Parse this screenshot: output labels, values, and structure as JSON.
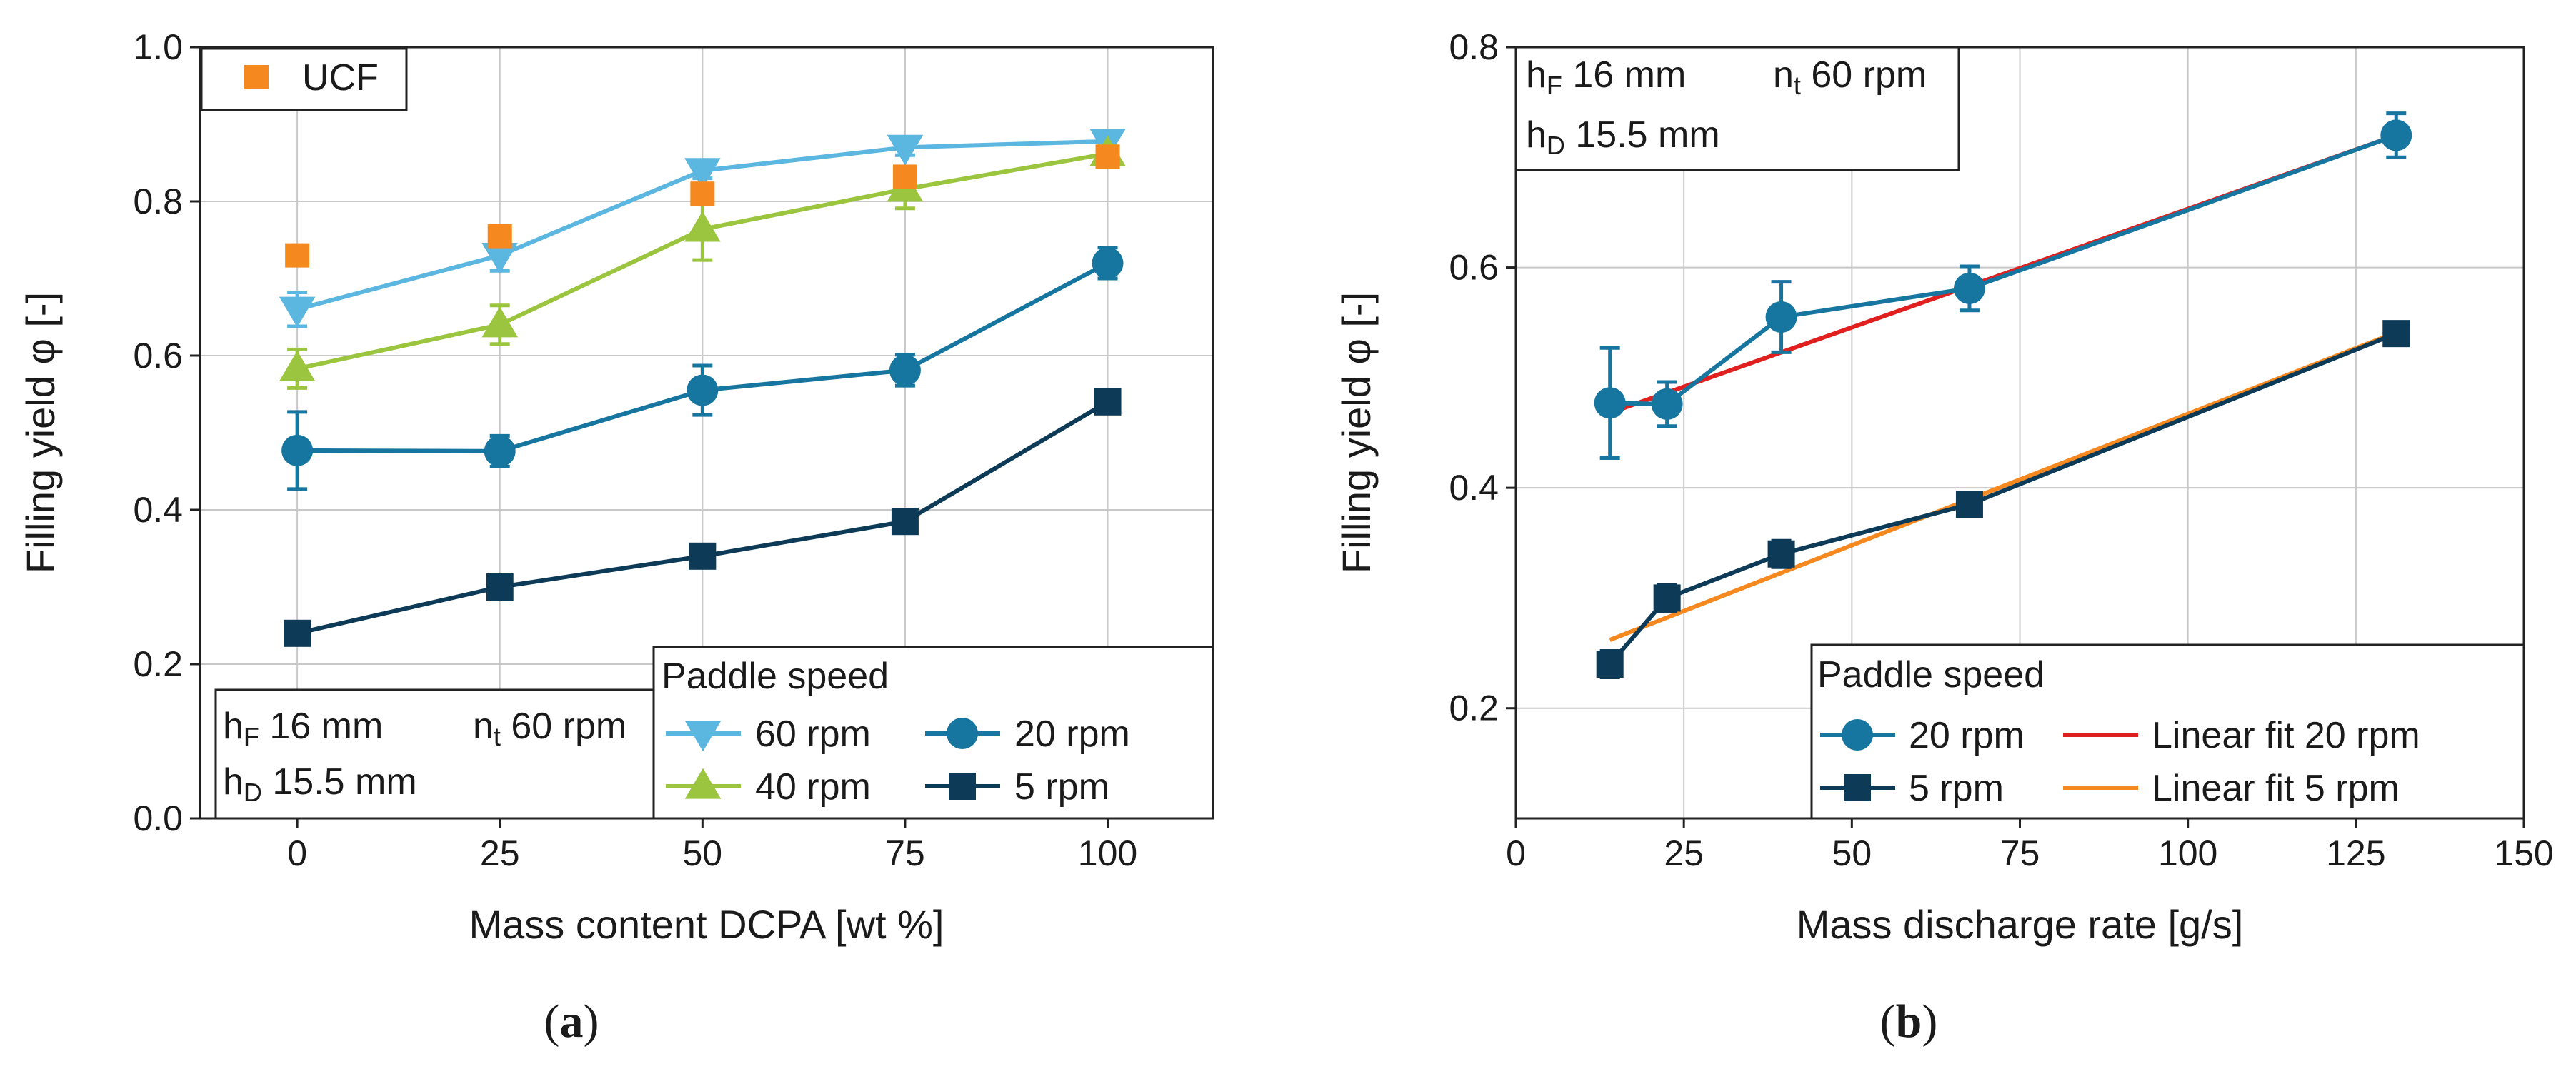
{
  "chart_data": [
    {
      "type": "line",
      "panel": "(a)",
      "panel_letter": "a",
      "xlabel": "Mass content DCPA [wt %]",
      "ylabel": "Filling yield φ [-]",
      "xlim": [
        -12,
        113
      ],
      "ylim": [
        0,
        1.0
      ],
      "xticks": [
        0,
        25,
        50,
        75,
        100
      ],
      "xtick_labels": [
        "0",
        "25",
        "50",
        "75",
        "100"
      ],
      "yticks": [
        0,
        0.2,
        0.4,
        0.6,
        0.8,
        1.0
      ],
      "ytick_labels": [
        "0.0",
        "0.2",
        "0.4",
        "0.6",
        "0.8",
        "1.0"
      ],
      "x": [
        0,
        25,
        50,
        75,
        100
      ],
      "grid": true,
      "legend_title": "Paddle speed",
      "series": [
        {
          "name": "60 rpm",
          "color": "#5bb6e0",
          "marker": "triangle-down",
          "values": [
            0.66,
            0.73,
            0.84,
            0.87,
            0.878
          ],
          "errors": [
            0.022,
            0.02,
            0.01,
            0.01,
            0.008
          ]
        },
        {
          "name": "40 rpm",
          "color": "#9cc53f",
          "marker": "triangle-up",
          "values": [
            0.583,
            0.64,
            0.764,
            0.816,
            0.862
          ],
          "errors": [
            0.025,
            0.025,
            0.04,
            0.025,
            0.01
          ]
        },
        {
          "name": "20 rpm",
          "color": "#17769f",
          "marker": "circle",
          "values": [
            0.477,
            0.476,
            0.555,
            0.581,
            0.72
          ],
          "errors": [
            0.05,
            0.02,
            0.032,
            0.02,
            0.02
          ]
        },
        {
          "name": "5 rpm",
          "color": "#0c3a57",
          "marker": "square",
          "values": [
            0.24,
            0.3,
            0.34,
            0.385,
            0.54
          ],
          "errors": [
            0.012,
            0.012,
            0.012,
            0.008,
            0.008
          ]
        }
      ],
      "extra_series": {
        "name": "UCF",
        "color": "#f5891f",
        "marker": "square",
        "values": [
          0.73,
          0.755,
          0.81,
          0.832,
          0.858
        ]
      },
      "annotation": {
        "hF": "16 mm",
        "nt": "60 rpm",
        "hD": "15.5 mm"
      }
    },
    {
      "type": "line",
      "panel": "(b)",
      "panel_letter": "b",
      "xlabel": "Mass discharge rate [g/s]",
      "ylabel": "Filling yield φ [-]",
      "xlim": [
        0,
        150
      ],
      "ylim": [
        0.1,
        0.8
      ],
      "xticks": [
        0,
        25,
        50,
        75,
        100,
        125,
        150
      ],
      "xtick_labels": [
        "0",
        "25",
        "50",
        "75",
        "100",
        "125",
        "150"
      ],
      "yticks": [
        0.2,
        0.4,
        0.6,
        0.8
      ],
      "ytick_labels": [
        "0.2",
        "0.4",
        "0.6",
        "0.8"
      ],
      "grid": true,
      "legend_title": "Paddle speed",
      "series": [
        {
          "name": "20 rpm",
          "color": "#17769f",
          "marker": "circle",
          "x": [
            14,
            22.5,
            39.5,
            67.5,
            131
          ],
          "values": [
            0.477,
            0.476,
            0.555,
            0.581,
            0.72
          ],
          "errors": [
            0.05,
            0.02,
            0.032,
            0.02,
            0.02
          ]
        },
        {
          "name": "5 rpm",
          "color": "#0c3a57",
          "marker": "square",
          "x": [
            14,
            22.5,
            39.5,
            67.5,
            131
          ],
          "values": [
            0.24,
            0.3,
            0.34,
            0.385,
            0.54
          ],
          "errors": [
            0.012,
            0.012,
            0.012,
            0.008,
            0.008
          ]
        }
      ],
      "fits": [
        {
          "name": "Linear fit 20 rpm",
          "color": "#e0201f",
          "x": [
            14,
            131
          ],
          "values": [
            0.468,
            0.72
          ]
        },
        {
          "name": "Linear fit 5 rpm",
          "color": "#f5891f",
          "x": [
            14,
            131
          ],
          "values": [
            0.262,
            0.541
          ]
        }
      ],
      "annotation": {
        "hF": "16 mm",
        "nt": "60 rpm",
        "hD": "15.5 mm"
      }
    }
  ]
}
